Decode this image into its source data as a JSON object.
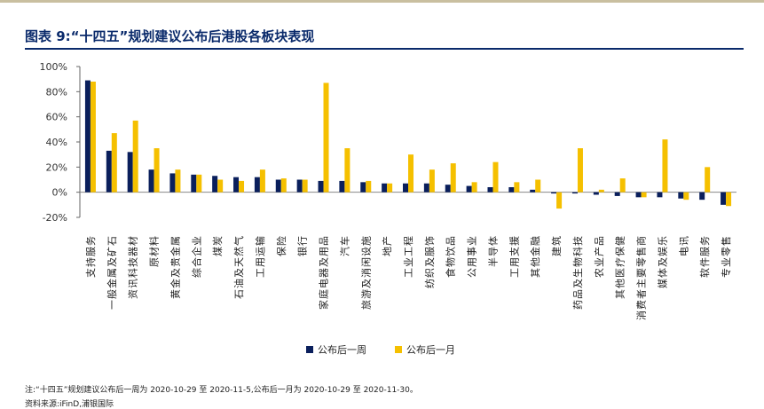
{
  "header": {
    "title": "图表 9:“十四五”规划建议公布后港股各板块表现"
  },
  "chart_data": {
    "type": "bar",
    "categories": [
      "支持服务",
      "一般金属及矿石",
      "资讯科技器材",
      "原材料",
      "黄金及贵金属",
      "综合企业",
      "煤炭",
      "石油及天然气",
      "工用运输",
      "保险",
      "银行",
      "家庭电器及用品",
      "汽车",
      "旅游及消闲设施",
      "地产",
      "工业工程",
      "纺织及服饰",
      "食物饮品",
      "公用事业",
      "半导体",
      "工用支援",
      "其他金融",
      "建筑",
      "药品及生物科技",
      "农业产品",
      "其他医疗保健",
      "消费者主要零售商",
      "媒体及娱乐",
      "电讯",
      "软件服务",
      "专业零售"
    ],
    "series": [
      {
        "name": "公布后一周",
        "color": "#0a1f5c",
        "values": [
          89,
          33,
          32,
          18,
          15,
          14,
          13,
          12,
          12,
          10,
          10,
          9,
          9,
          8,
          7,
          7,
          7,
          6,
          5,
          4,
          4,
          2,
          -1,
          -1,
          -2,
          -3,
          -4,
          -4,
          -5,
          -6,
          -10
        ]
      },
      {
        "name": "公布后一月",
        "color": "#f5c000",
        "values": [
          88,
          47,
          57,
          35,
          18,
          14,
          10,
          9,
          18,
          11,
          10,
          87,
          35,
          9,
          7,
          30,
          18,
          23,
          8,
          24,
          8,
          10,
          -13,
          35,
          2,
          11,
          -4,
          42,
          -6,
          20,
          -11
        ]
      }
    ],
    "ylim": [
      -20,
      100
    ],
    "yticks": [
      "-20%",
      "0%",
      "20%",
      "40%",
      "60%",
      "80%",
      "100%"
    ],
    "ytick_values": [
      -20,
      0,
      20,
      40,
      60,
      80,
      100
    ],
    "legend_position": "bottom-center"
  },
  "footer": {
    "note": "注:“十四五”规划建议公布后一周为 2020-10-29 至 2020-11-5,公布后一月为 2020-10-29 至 2020-11-30。",
    "source": "资料来源:iFinD,浦银国际"
  }
}
